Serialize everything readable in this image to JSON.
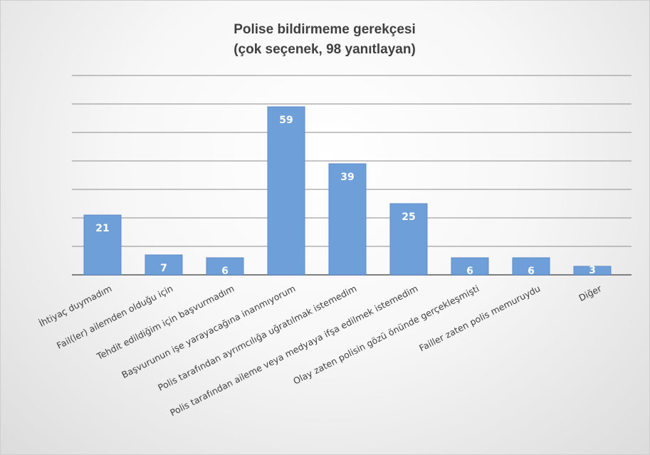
{
  "chart_data": {
    "type": "bar",
    "title": "Polise bildirmeme gerekçesi",
    "subtitle": "(çok seçenek, 98 yanıtlayan)",
    "xlabel": "",
    "ylabel": "",
    "categories": [
      "İhtiyaç duymadım",
      "Fail(ler) ailemden olduğu için",
      "Tehdit edildiğim için başvurmadım",
      "Başvurunun işe yarayacağına inanmıyorum",
      "Polis tarafından ayrımcılığa uğratılmak istemedim",
      "Polis tarafından aileme veya medyaya ifşa edilmek istemedim",
      "Olay zaten polisin gözü önünde gerçekleşmişti",
      "Failler zaten polis memuruydu",
      "Diğer"
    ],
    "values": [
      21,
      7,
      6,
      59,
      39,
      25,
      6,
      6,
      3
    ],
    "data_labels": [
      "21",
      "7",
      "6",
      "59",
      "39",
      "25",
      "6",
      "6",
      "3"
    ],
    "ylim": [
      0,
      70
    ],
    "grid": true,
    "legend": "none",
    "colors": {
      "bar": "#6f9fd8",
      "bar_edge": "#5b8cc8",
      "grid": "#8c8c8c",
      "axis": "#7f7f7f",
      "title": "#404040",
      "tick_label": "#404040",
      "data_label": "#ffffff"
    }
  }
}
